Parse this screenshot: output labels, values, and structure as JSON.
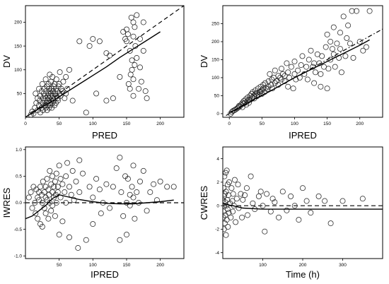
{
  "chart_data": [
    {
      "type": "scatter",
      "xlabel": "PRED",
      "ylabel": "DV",
      "xlim": [
        0,
        235
      ],
      "ylim": [
        0,
        235
      ],
      "xticks": [
        0,
        50,
        100,
        150,
        200
      ],
      "yticks": [
        50,
        100,
        150,
        200
      ],
      "x_tick_labels": [
        "0",
        "50",
        "100",
        "150",
        "200"
      ],
      "y_tick_labels": [
        "50",
        "100",
        "150",
        "200"
      ],
      "reference_line": {
        "style": "dashed",
        "x": [
          0,
          235
        ],
        "y": [
          0,
          235
        ]
      },
      "trend_line": {
        "style": "solid",
        "x": [
          2,
          20,
          40,
          60,
          80,
          100,
          120,
          140,
          160,
          180,
          200
        ],
        "y": [
          2,
          18,
          34,
          52,
          70,
          88,
          106,
          126,
          144,
          162,
          180
        ]
      },
      "points": {
        "x": [
          8,
          10,
          12,
          14,
          15,
          16,
          18,
          18,
          20,
          20,
          21,
          22,
          22,
          24,
          24,
          25,
          25,
          26,
          26,
          27,
          28,
          28,
          28,
          29,
          30,
          30,
          30,
          31,
          31,
          32,
          32,
          33,
          33,
          33,
          34,
          34,
          35,
          35,
          35,
          36,
          36,
          36,
          37,
          37,
          38,
          38,
          38,
          39,
          39,
          40,
          40,
          40,
          41,
          41,
          42,
          42,
          43,
          43,
          44,
          44,
          45,
          45,
          46,
          46,
          47,
          48,
          48,
          49,
          50,
          50,
          51,
          52,
          53,
          55,
          56,
          58,
          60,
          60,
          62,
          65,
          70,
          80,
          90,
          95,
          100,
          105,
          110,
          120,
          120,
          125,
          130,
          140,
          145,
          148,
          150,
          150,
          152,
          153,
          155,
          155,
          156,
          157,
          158,
          158,
          160,
          160,
          160,
          160,
          162,
          162,
          163,
          165,
          165,
          168,
          170,
          170,
          172,
          175,
          175,
          178,
          180
        ],
        "y": [
          5,
          12,
          8,
          20,
          50,
          30,
          40,
          15,
          25,
          60,
          35,
          10,
          45,
          55,
          20,
          30,
          70,
          40,
          15,
          50,
          35,
          25,
          60,
          45,
          20,
          80,
          40,
          30,
          55,
          65,
          15,
          45,
          25,
          35,
          70,
          50,
          20,
          60,
          40,
          30,
          90,
          55,
          25,
          45,
          35,
          75,
          50,
          20,
          60,
          40,
          30,
          85,
          55,
          45,
          65,
          35,
          25,
          70,
          50,
          40,
          60,
          30,
          45,
          80,
          55,
          40,
          35,
          65,
          50,
          70,
          95,
          45,
          60,
          55,
          75,
          40,
          50,
          85,
          60,
          100,
          35,
          160,
          10,
          150,
          165,
          50,
          160,
          35,
          135,
          130,
          40,
          85,
          180,
          165,
          160,
          185,
          175,
          70,
          60,
          140,
          90,
          210,
          120,
          100,
          200,
          80,
          170,
          45,
          110,
          190,
          150,
          125,
          215,
          60,
          105,
          165,
          75,
          200,
          140,
          55,
          40
        ]
      }
    },
    {
      "type": "scatter",
      "xlabel": "IPRED",
      "ylabel": "DV",
      "xlim": [
        -10,
        235
      ],
      "ylim": [
        -10,
        300
      ],
      "xticks": [
        0,
        50,
        100,
        150,
        200
      ],
      "yticks": [
        0,
        50,
        100,
        150,
        200,
        250
      ],
      "x_tick_labels": [
        "0",
        "50",
        "100",
        "150",
        "200"
      ],
      "y_tick_labels": [
        "0",
        "50",
        "100",
        "150",
        "200",
        "250"
      ],
      "reference_line": {
        "style": "dash-dot",
        "x": [
          -5,
          235
        ],
        "y": [
          -5,
          235
        ]
      },
      "trend_line": {
        "style": "solid",
        "x": [
          0,
          20,
          40,
          60,
          80,
          100,
          120,
          140,
          160,
          180,
          200,
          215
        ],
        "y": [
          2,
          22,
          42,
          60,
          80,
          100,
          118,
          136,
          154,
          172,
          190,
          205
        ]
      },
      "points": {
        "x": [
          2,
          4,
          6,
          8,
          10,
          12,
          14,
          15,
          16,
          18,
          20,
          20,
          22,
          22,
          24,
          25,
          26,
          28,
          28,
          30,
          30,
          32,
          32,
          34,
          35,
          36,
          38,
          38,
          40,
          40,
          42,
          42,
          44,
          45,
          46,
          48,
          48,
          50,
          50,
          52,
          52,
          54,
          55,
          56,
          58,
          60,
          60,
          62,
          64,
          65,
          66,
          68,
          70,
          70,
          72,
          75,
          75,
          78,
          80,
          80,
          82,
          85,
          85,
          88,
          90,
          90,
          92,
          95,
          98,
          100,
          100,
          102,
          105,
          108,
          110,
          112,
          115,
          118,
          120,
          122,
          125,
          128,
          130,
          130,
          132,
          135,
          138,
          140,
          140,
          142,
          145,
          148,
          150,
          150,
          152,
          155,
          155,
          158,
          160,
          160,
          162,
          165,
          168,
          170,
          170,
          172,
          175,
          178,
          180,
          182,
          185,
          188,
          190,
          195,
          200,
          205,
          210,
          215
        ],
        "y": [
          0,
          5,
          8,
          10,
          12,
          15,
          18,
          22,
          20,
          25,
          30,
          18,
          28,
          35,
          30,
          40,
          25,
          35,
          45,
          40,
          30,
          50,
          38,
          55,
          45,
          60,
          50,
          42,
          65,
          55,
          48,
          58,
          70,
          52,
          60,
          62,
          75,
          65,
          55,
          80,
          70,
          60,
          85,
          72,
          68,
          90,
          75,
          110,
          80,
          95,
          70,
          100,
          85,
          120,
          90,
          105,
          80,
          100,
          125,
          95,
          110,
          105,
          90,
          140,
          115,
          75,
          100,
          130,
          70,
          110,
          145,
          95,
          120,
          100,
          135,
          160,
          110,
          130,
          95,
          150,
          175,
          130,
          85,
          140,
          115,
          165,
          140,
          75,
          110,
          160,
          130,
          185,
          70,
          220,
          125,
          200,
          150,
          180,
          165,
          240,
          130,
          195,
          155,
          225,
          180,
          115,
          270,
          160,
          210,
          245,
          195,
          285,
          155,
          285,
          200,
          175,
          185,
          285
        ]
      }
    },
    {
      "type": "scatter",
      "xlabel": "IPRED",
      "ylabel": "IWRES",
      "xlim": [
        0,
        235
      ],
      "ylim": [
        -1.05,
        1.05
      ],
      "xticks": [
        50,
        100,
        150,
        200
      ],
      "yticks": [
        -1.0,
        -0.5,
        0.0,
        0.5,
        1.0
      ],
      "x_tick_labels": [
        "50",
        "100",
        "150",
        "200"
      ],
      "y_tick_labels": [
        "-1.0",
        "-0.5",
        "0.0",
        "0.5",
        "1.0"
      ],
      "reference_line": {
        "style": "dashed",
        "x": [
          0,
          235
        ],
        "y": [
          0,
          0
        ]
      },
      "trend_line": {
        "style": "solid",
        "x": [
          0,
          10,
          20,
          30,
          40,
          50,
          60,
          80,
          100,
          120,
          140,
          160,
          180,
          200,
          220
        ],
        "y": [
          -0.3,
          -0.25,
          -0.15,
          -0.05,
          0.08,
          0.15,
          0.12,
          0.06,
          0.02,
          -0.01,
          -0.02,
          -0.02,
          0.0,
          0.02,
          0.05
        ]
      },
      "points": {
        "x": [
          5,
          8,
          10,
          12,
          14,
          15,
          16,
          18,
          18,
          20,
          20,
          22,
          22,
          24,
          25,
          25,
          26,
          28,
          28,
          30,
          30,
          30,
          32,
          32,
          34,
          34,
          35,
          36,
          36,
          38,
          38,
          40,
          40,
          40,
          42,
          42,
          44,
          44,
          45,
          46,
          46,
          48,
          48,
          50,
          50,
          52,
          52,
          55,
          55,
          58,
          60,
          60,
          62,
          65,
          65,
          68,
          70,
          72,
          75,
          78,
          80,
          80,
          85,
          90,
          95,
          100,
          100,
          105,
          110,
          112,
          115,
          120,
          125,
          130,
          135,
          140,
          140,
          142,
          145,
          148,
          150,
          150,
          152,
          155,
          155,
          158,
          160,
          160,
          162,
          165,
          168,
          170,
          175,
          180,
          185,
          190,
          195,
          200,
          210,
          220
        ],
        "y": [
          0.1,
          0.2,
          -0.1,
          0.3,
          0.0,
          -0.2,
          0.25,
          0.1,
          -0.3,
          0.2,
          0.05,
          0.3,
          -0.4,
          0.15,
          0.0,
          -0.45,
          0.4,
          0.2,
          -0.1,
          0.3,
          0.1,
          -0.2,
          0.45,
          0.05,
          0.25,
          -0.3,
          0.15,
          0.6,
          0.0,
          0.35,
          -0.15,
          0.2,
          0.5,
          -0.05,
          0.3,
          0.1,
          0.4,
          -0.25,
          0.15,
          0.55,
          0.0,
          0.3,
          0.2,
          0.7,
          -0.6,
          0.45,
          0.1,
          0.35,
          -0.35,
          0.2,
          0.5,
          0.0,
          0.75,
          0.3,
          -0.65,
          0.15,
          0.6,
          0.05,
          0.4,
          -0.85,
          0.8,
          0.2,
          0.55,
          -0.7,
          0.3,
          0.1,
          -0.4,
          0.45,
          0.25,
          -0.2,
          0.0,
          0.35,
          -0.1,
          0.3,
          0.65,
          -0.7,
          0.85,
          0.2,
          -0.25,
          0.5,
          0.0,
          -0.6,
          0.45,
          0.15,
          -0.05,
          0.3,
          0.7,
          0.1,
          -0.3,
          0.2,
          0.0,
          0.4,
          0.6,
          -0.15,
          0.2,
          0.35,
          0.05,
          0.4,
          0.3,
          0.3
        ]
      }
    },
    {
      "type": "scatter",
      "xlabel": "Time (h)",
      "ylabel": "CWRES",
      "xlim": [
        0,
        400
      ],
      "ylim": [
        -4.5,
        5.0
      ],
      "xticks": [
        100,
        200,
        300
      ],
      "yticks": [
        -4,
        -2,
        0,
        2,
        4
      ],
      "x_tick_labels": [
        "100",
        "200",
        "300"
      ],
      "y_tick_labels": [
        "-4",
        "-2",
        "0",
        "2",
        "4"
      ],
      "reference_line": {
        "style": "dashed",
        "x": [
          0,
          400
        ],
        "y": [
          0,
          0
        ]
      },
      "trend_line": {
        "style": "solid",
        "x": [
          0,
          10,
          25,
          50,
          100,
          200,
          300,
          400
        ],
        "y": [
          0.2,
          0.1,
          0.0,
          -0.2,
          -0.3,
          -0.3,
          -0.3,
          -0.3
        ]
      },
      "points": {
        "x": [
          0,
          1,
          2,
          2,
          3,
          3,
          4,
          4,
          5,
          5,
          6,
          6,
          7,
          8,
          8,
          9,
          10,
          10,
          11,
          12,
          12,
          13,
          14,
          15,
          16,
          18,
          20,
          22,
          24,
          25,
          26,
          28,
          30,
          32,
          35,
          38,
          40,
          45,
          48,
          50,
          55,
          60,
          62,
          70,
          75,
          80,
          90,
          95,
          100,
          105,
          110,
          120,
          125,
          130,
          140,
          150,
          160,
          170,
          180,
          190,
          200,
          210,
          220,
          240,
          255,
          270,
          300,
          350
        ],
        "y": [
          0.5,
          -1.0,
          1.5,
          -0.5,
          0.8,
          -2.0,
          2.5,
          0.0,
          -1.5,
          1.0,
          0.3,
          -0.8,
          2.8,
          -2.5,
          1.2,
          0.0,
          -1.2,
          3.0,
          0.5,
          -0.3,
          1.8,
          -1.8,
          0.9,
          -0.6,
          2.0,
          0.2,
          -1.0,
          1.5,
          0.4,
          -0.5,
          1.0,
          0.0,
          2.2,
          -1.4,
          0.6,
          1.8,
          -0.2,
          1.0,
          -1.0,
          0.5,
          0.9,
          1.5,
          -0.8,
          2.5,
          0.2,
          -0.3,
          0.8,
          1.2,
          0.0,
          -2.2,
          1.0,
          -0.5,
          0.6,
          0.3,
          -1.0,
          1.2,
          -0.4,
          0.8,
          0.0,
          -1.2,
          1.5,
          0.4,
          -0.6,
          0.8,
          0.4,
          -1.5,
          0.4,
          0.6
        ]
      }
    }
  ]
}
